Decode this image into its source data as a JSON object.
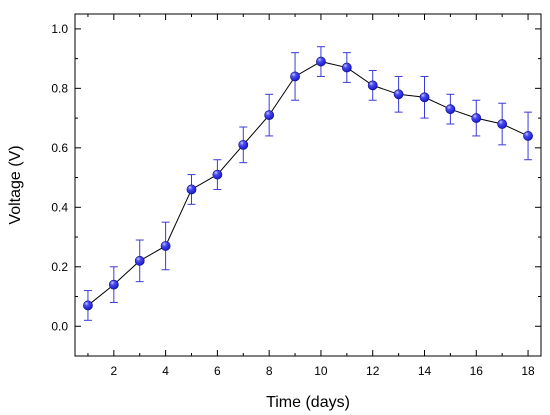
{
  "chart_data": {
    "type": "line",
    "xlabel": "Time (days)",
    "ylabel": "Voltage (V)",
    "xlim": [
      0.5,
      18.5
    ],
    "ylim": [
      -0.1,
      1.05
    ],
    "x_ticks": [
      2,
      4,
      6,
      8,
      10,
      12,
      14,
      16,
      18
    ],
    "y_ticks": [
      0.0,
      0.2,
      0.4,
      0.6,
      0.8,
      1.0
    ],
    "x_tick_labels": [
      "2",
      "4",
      "6",
      "8",
      "10",
      "12",
      "14",
      "16",
      "18"
    ],
    "y_tick_labels": [
      "0.0",
      "0.2",
      "0.4",
      "0.6",
      "0.8",
      "1.0"
    ],
    "grid": false,
    "line_color": "#000000",
    "marker_color": "#1a1acc",
    "errorbar_color": "#3b3bd6",
    "series": [
      {
        "x": [
          1,
          2,
          3,
          4,
          5,
          6,
          7,
          8,
          9,
          10,
          11,
          12,
          13,
          14,
          15,
          16,
          17,
          18
        ],
        "values": [
          0.07,
          0.14,
          0.22,
          0.27,
          0.46,
          0.51,
          0.61,
          0.71,
          0.84,
          0.89,
          0.87,
          0.81,
          0.78,
          0.77,
          0.73,
          0.7,
          0.68,
          0.64
        ],
        "error": [
          0.05,
          0.06,
          0.07,
          0.08,
          0.05,
          0.05,
          0.06,
          0.07,
          0.08,
          0.05,
          0.05,
          0.05,
          0.06,
          0.07,
          0.05,
          0.06,
          0.07,
          0.08
        ]
      }
    ]
  }
}
